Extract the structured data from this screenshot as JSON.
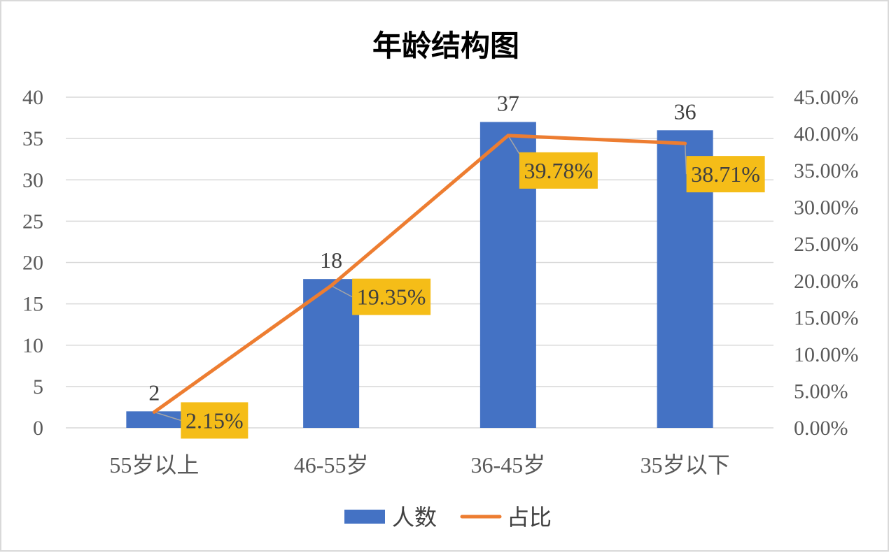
{
  "chart_data": {
    "type": "bar",
    "title": "年龄结构图",
    "categories": [
      "55岁以上",
      "46-55岁",
      "36-45岁",
      "35岁以下"
    ],
    "series": [
      {
        "name": "人数",
        "type": "bar",
        "axis": "left",
        "values": [
          2,
          18,
          37,
          36
        ],
        "labels": [
          "2",
          "18",
          "37",
          "36"
        ]
      },
      {
        "name": "占比",
        "type": "line",
        "axis": "right",
        "values": [
          2.15,
          19.35,
          39.78,
          38.71
        ],
        "labels": [
          "2.15%",
          "19.35%",
          "39.78%",
          "38.71%"
        ]
      }
    ],
    "y_left": {
      "ylim": [
        0,
        40
      ],
      "ticks": [
        "0",
        "5",
        "10",
        "15",
        "20",
        "25",
        "30",
        "35",
        "40"
      ]
    },
    "y_right": {
      "ylim": [
        0,
        45
      ],
      "ticks": [
        "0.00%",
        "5.00%",
        "10.00%",
        "15.00%",
        "20.00%",
        "25.00%",
        "30.00%",
        "35.00%",
        "40.00%",
        "45.00%"
      ]
    },
    "grid": true,
    "legend_position": "bottom",
    "colors": {
      "bar": "#4472c4",
      "line": "#ed7d31",
      "label_box": "#f5bd18",
      "leader": "#a6a6a6"
    }
  }
}
